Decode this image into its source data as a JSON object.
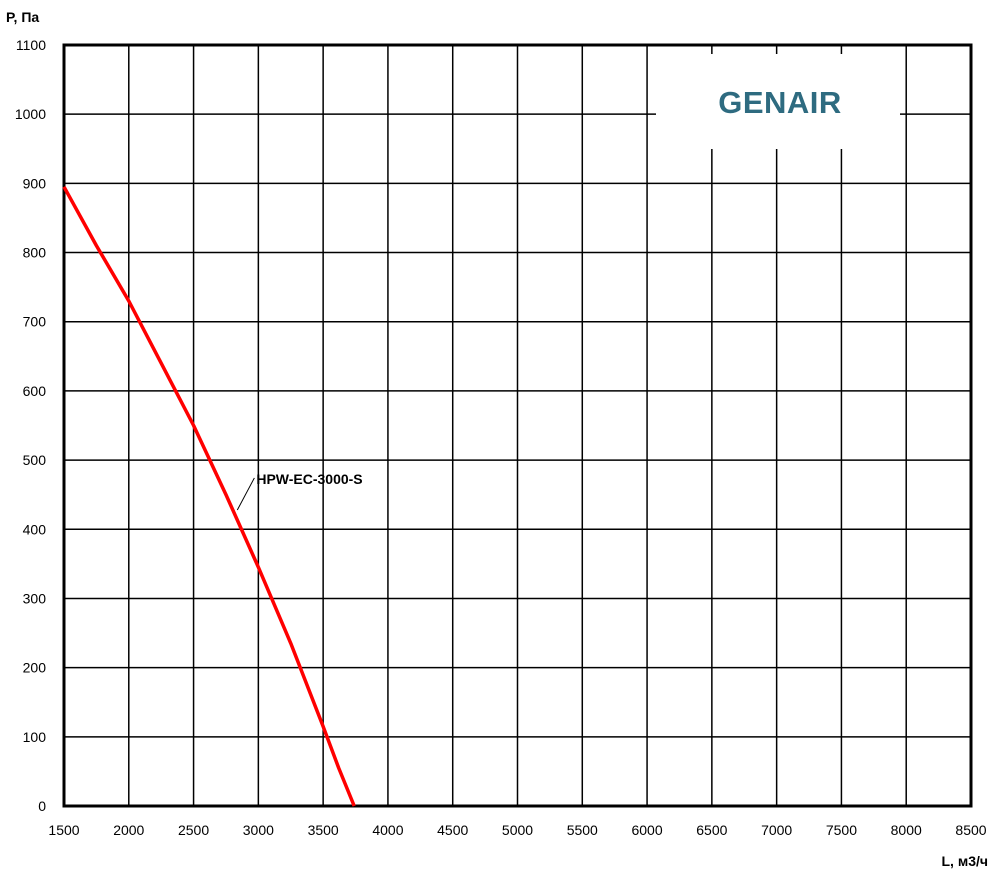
{
  "chart_data": {
    "type": "line",
    "ylabel": "P, Па",
    "xlabel": "L, м3/ч",
    "xlim": [
      1500,
      8500
    ],
    "ylim": [
      0,
      1100
    ],
    "x_ticks": [
      1500,
      2000,
      2500,
      3000,
      3500,
      4000,
      4500,
      5000,
      5500,
      6000,
      6500,
      7000,
      7500,
      8000,
      8500
    ],
    "y_ticks": [
      0,
      100,
      200,
      300,
      400,
      500,
      600,
      700,
      800,
      900,
      1000,
      1100
    ],
    "grid": true,
    "brand": "GENAIR",
    "series": [
      {
        "name": "HPW-EC-3000-S",
        "color": "#ff0000",
        "x": [
          1500,
          1750,
          2000,
          2250,
          2500,
          2750,
          3000,
          3250,
          3500,
          3620,
          3740
        ],
        "y": [
          895,
          810,
          730,
          640,
          550,
          450,
          345,
          235,
          115,
          55,
          0
        ]
      }
    ],
    "annotation": {
      "text": "HPW-EC-3000-S",
      "series_index": 0,
      "point": [
        2830,
        425
      ],
      "text_at": [
        3000,
        480
      ]
    }
  }
}
